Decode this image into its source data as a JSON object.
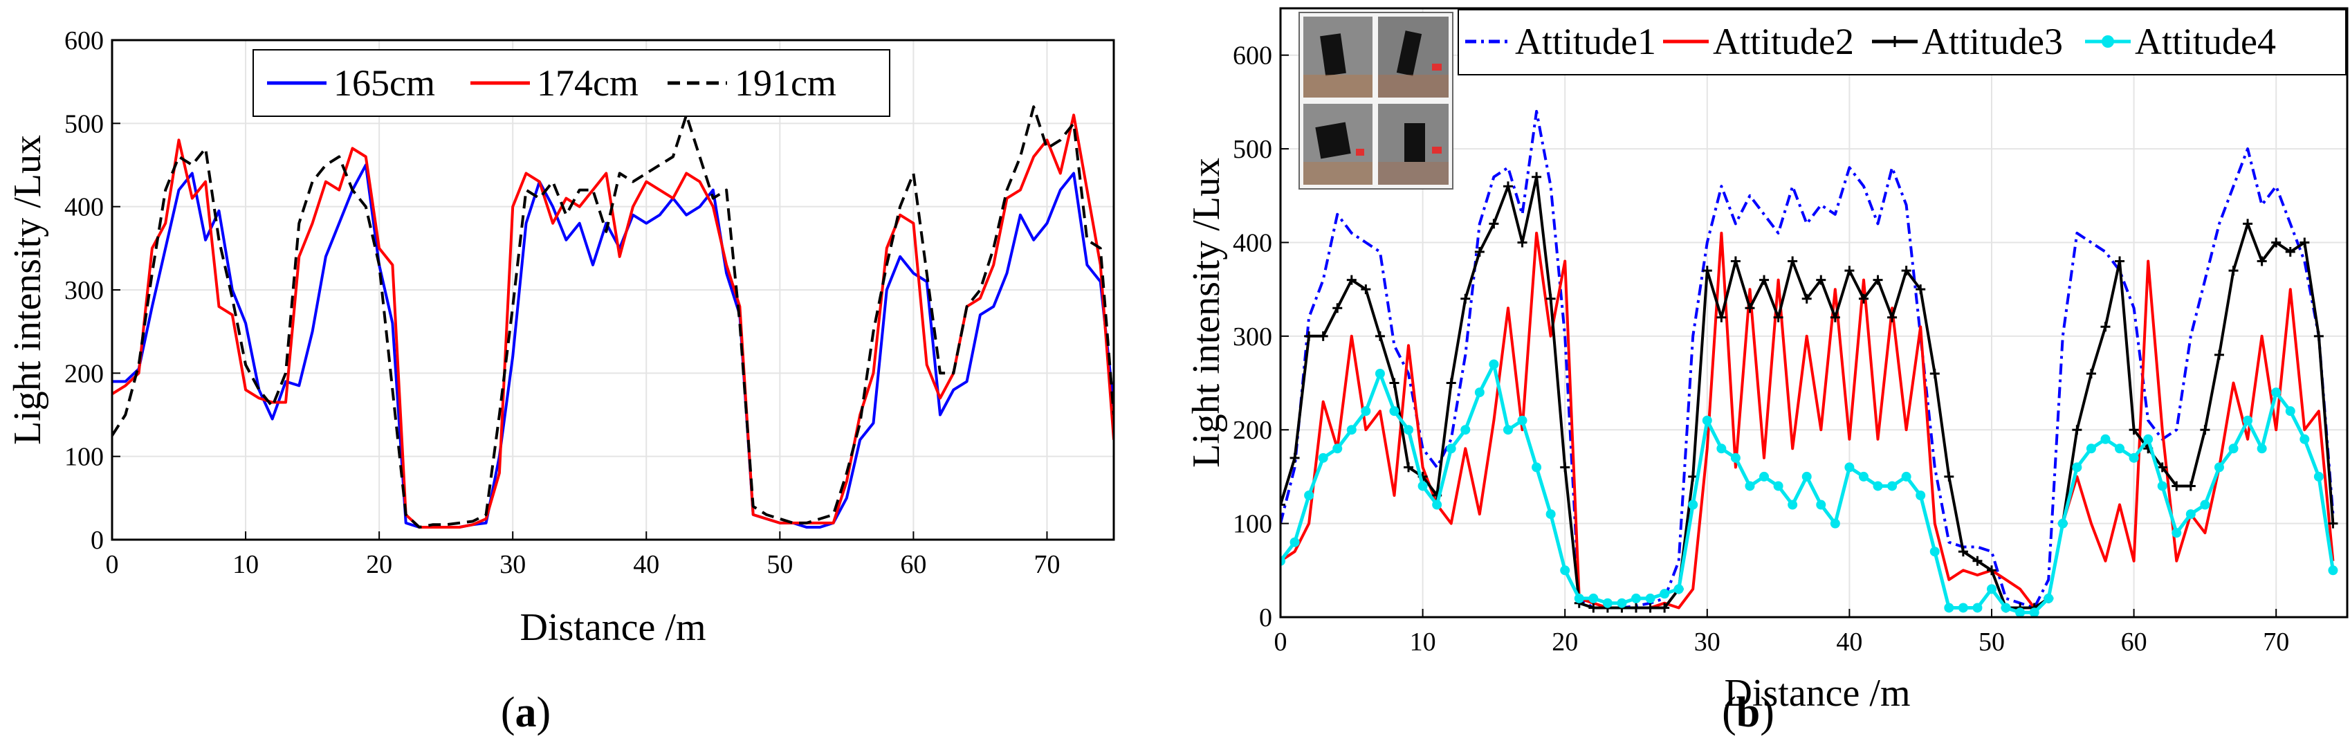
{
  "chart_data": [
    {
      "id": "a",
      "type": "line",
      "caption_letter": "a",
      "xlabel": "Distance /m",
      "ylabel": "Light intensity /Lux",
      "xlim": [
        0,
        75
      ],
      "ylim": [
        0,
        600
      ],
      "xticks": [
        0,
        10,
        20,
        30,
        40,
        50,
        60,
        70
      ],
      "yticks": [
        0,
        100,
        200,
        300,
        400,
        500,
        600
      ],
      "grid": true,
      "legend_position": "top-center",
      "series": [
        {
          "name": "165cm",
          "color": "#0000ff",
          "style": "solid",
          "x": [
            0,
            1,
            2,
            3,
            4,
            5,
            6,
            7,
            8,
            9,
            10,
            11,
            12,
            13,
            14,
            15,
            16,
            17,
            18,
            19,
            20,
            21,
            22,
            23,
            24,
            25,
            26,
            27,
            28,
            29,
            30,
            31,
            32,
            33,
            34,
            35,
            36,
            37,
            38,
            39,
            40,
            41,
            42,
            43,
            44,
            45,
            46,
            47,
            48,
            49,
            50,
            51,
            52,
            53,
            54,
            55,
            56,
            57,
            58,
            59,
            60,
            61,
            62,
            63,
            64,
            65,
            66,
            67,
            68,
            69,
            70,
            71,
            72,
            73,
            74,
            75
          ],
          "y": [
            190,
            190,
            205,
            280,
            350,
            420,
            440,
            360,
            395,
            300,
            260,
            180,
            145,
            190,
            185,
            250,
            340,
            380,
            420,
            450,
            330,
            260,
            20,
            15,
            15,
            15,
            15,
            18,
            20,
            100,
            220,
            380,
            430,
            400,
            360,
            380,
            330,
            380,
            350,
            390,
            380,
            390,
            410,
            390,
            400,
            420,
            320,
            270,
            30,
            25,
            20,
            20,
            15,
            15,
            20,
            50,
            120,
            140,
            300,
            340,
            320,
            310,
            150,
            180,
            190,
            270,
            280,
            320,
            390,
            360,
            380,
            420,
            440,
            330,
            310,
            160
          ]
        },
        {
          "name": "174cm",
          "color": "#ff0000",
          "style": "solid",
          "x": [
            0,
            1,
            2,
            3,
            4,
            5,
            6,
            7,
            8,
            9,
            10,
            11,
            12,
            13,
            14,
            15,
            16,
            17,
            18,
            19,
            20,
            21,
            22,
            23,
            24,
            25,
            26,
            27,
            28,
            29,
            30,
            31,
            32,
            33,
            34,
            35,
            36,
            37,
            38,
            39,
            40,
            41,
            42,
            43,
            44,
            45,
            46,
            47,
            48,
            49,
            50,
            51,
            52,
            53,
            54,
            55,
            56,
            57,
            58,
            59,
            60,
            61,
            62,
            63,
            64,
            65,
            66,
            67,
            68,
            69,
            70,
            71,
            72,
            73,
            74,
            75
          ],
          "y": [
            175,
            185,
            200,
            350,
            380,
            480,
            410,
            430,
            280,
            270,
            180,
            170,
            165,
            165,
            340,
            380,
            430,
            420,
            470,
            460,
            350,
            330,
            30,
            15,
            15,
            15,
            15,
            18,
            25,
            80,
            400,
            440,
            430,
            380,
            410,
            400,
            420,
            440,
            340,
            400,
            430,
            420,
            410,
            440,
            430,
            400,
            330,
            280,
            30,
            25,
            20,
            20,
            20,
            20,
            20,
            70,
            150,
            200,
            350,
            390,
            380,
            210,
            170,
            200,
            280,
            290,
            330,
            410,
            420,
            460,
            480,
            440,
            510,
            420,
            330,
            120
          ]
        },
        {
          "name": "191cm",
          "color": "#000000",
          "style": "dashed",
          "x": [
            0,
            1,
            2,
            3,
            4,
            5,
            6,
            7,
            8,
            9,
            10,
            11,
            12,
            13,
            14,
            15,
            16,
            17,
            18,
            19,
            20,
            21,
            22,
            23,
            24,
            25,
            26,
            27,
            28,
            29,
            30,
            31,
            32,
            33,
            34,
            35,
            36,
            37,
            38,
            39,
            40,
            41,
            42,
            43,
            44,
            45,
            46,
            47,
            48,
            49,
            50,
            51,
            52,
            53,
            54,
            55,
            56,
            57,
            58,
            59,
            60,
            61,
            62,
            63,
            64,
            65,
            66,
            67,
            68,
            69,
            70,
            71,
            72,
            73,
            74,
            75
          ],
          "y": [
            125,
            150,
            210,
            320,
            420,
            460,
            450,
            470,
            360,
            290,
            210,
            180,
            160,
            200,
            380,
            430,
            450,
            460,
            420,
            400,
            330,
            180,
            30,
            15,
            18,
            18,
            20,
            22,
            30,
            150,
            280,
            420,
            410,
            430,
            390,
            420,
            420,
            370,
            440,
            430,
            440,
            450,
            460,
            510,
            460,
            410,
            420,
            260,
            40,
            30,
            25,
            20,
            20,
            25,
            30,
            80,
            140,
            250,
            330,
            400,
            440,
            320,
            200,
            200,
            280,
            300,
            350,
            420,
            460,
            520,
            470,
            480,
            500,
            360,
            350,
            150
          ]
        }
      ]
    },
    {
      "id": "b",
      "type": "line",
      "caption_letter": "b",
      "xlabel": "Distance /m",
      "ylabel": "Light intensity /Lux",
      "xlim": [
        0,
        75
      ],
      "ylim": [
        0,
        650
      ],
      "xticks": [
        0,
        10,
        20,
        30,
        40,
        50,
        60,
        70
      ],
      "yticks": [
        0,
        100,
        200,
        300,
        400,
        500,
        600
      ],
      "grid": true,
      "legend_position": "top",
      "inset": "photo grid of four phone-holding attitudes (top-left)",
      "series": [
        {
          "name": "Attitude1",
          "color": "#0000ff",
          "style": "dashdot",
          "x": [
            0,
            1,
            2,
            3,
            4,
            5,
            6,
            7,
            8,
            9,
            10,
            11,
            12,
            13,
            14,
            15,
            16,
            17,
            18,
            19,
            20,
            21,
            22,
            23,
            24,
            25,
            26,
            27,
            28,
            29,
            30,
            31,
            32,
            33,
            34,
            35,
            36,
            37,
            38,
            39,
            40,
            41,
            42,
            43,
            44,
            45,
            46,
            47,
            48,
            49,
            50,
            51,
            52,
            53,
            54,
            55,
            56,
            57,
            58,
            59,
            60,
            61,
            62,
            63,
            64,
            65,
            66,
            67,
            68,
            69,
            70,
            71,
            72,
            73,
            74
          ],
          "y": [
            100,
            160,
            320,
            360,
            430,
            410,
            400,
            390,
            290,
            260,
            180,
            160,
            190,
            280,
            420,
            470,
            480,
            430,
            540,
            460,
            300,
            20,
            10,
            10,
            10,
            12,
            15,
            20,
            60,
            300,
            400,
            460,
            420,
            450,
            430,
            410,
            460,
            420,
            440,
            430,
            480,
            460,
            420,
            480,
            440,
            300,
            160,
            80,
            75,
            75,
            70,
            20,
            15,
            10,
            40,
            300,
            410,
            400,
            390,
            370,
            330,
            210,
            190,
            200,
            300,
            360,
            420,
            460,
            500,
            440,
            460,
            420,
            380,
            300,
            110
          ]
        },
        {
          "name": "Attitude2",
          "color": "#ff0000",
          "style": "solid",
          "x": [
            0,
            1,
            2,
            3,
            4,
            5,
            6,
            7,
            8,
            9,
            10,
            11,
            12,
            13,
            14,
            15,
            16,
            17,
            18,
            19,
            20,
            21,
            22,
            23,
            24,
            25,
            26,
            27,
            28,
            29,
            30,
            31,
            32,
            33,
            34,
            35,
            36,
            37,
            38,
            39,
            40,
            41,
            42,
            43,
            44,
            45,
            46,
            47,
            48,
            49,
            50,
            51,
            52,
            53,
            54,
            55,
            56,
            57,
            58,
            59,
            60,
            61,
            62,
            63,
            64,
            65,
            66,
            67,
            68,
            69,
            70,
            71,
            72,
            73,
            74
          ],
          "y": [
            60,
            70,
            100,
            230,
            180,
            300,
            200,
            220,
            130,
            290,
            160,
            120,
            100,
            180,
            110,
            210,
            330,
            200,
            410,
            300,
            380,
            20,
            15,
            10,
            10,
            10,
            10,
            15,
            10,
            30,
            180,
            410,
            160,
            350,
            170,
            360,
            180,
            300,
            200,
            350,
            190,
            360,
            190,
            330,
            200,
            310,
            100,
            40,
            50,
            45,
            50,
            40,
            30,
            10,
            20,
            100,
            150,
            100,
            60,
            120,
            60,
            380,
            200,
            60,
            110,
            90,
            160,
            250,
            190,
            300,
            200,
            350,
            200,
            220,
            60
          ]
        },
        {
          "name": "Attitude3",
          "color": "#000000",
          "style": "solid-plus",
          "x": [
            0,
            1,
            2,
            3,
            4,
            5,
            6,
            7,
            8,
            9,
            10,
            11,
            12,
            13,
            14,
            15,
            16,
            17,
            18,
            19,
            20,
            21,
            22,
            23,
            24,
            25,
            26,
            27,
            28,
            29,
            30,
            31,
            32,
            33,
            34,
            35,
            36,
            37,
            38,
            39,
            40,
            41,
            42,
            43,
            44,
            45,
            46,
            47,
            48,
            49,
            50,
            51,
            52,
            53,
            54,
            55,
            56,
            57,
            58,
            59,
            60,
            61,
            62,
            63,
            64,
            65,
            66,
            67,
            68,
            69,
            70,
            71,
            72,
            73,
            74
          ],
          "y": [
            120,
            170,
            300,
            300,
            330,
            360,
            350,
            300,
            250,
            160,
            150,
            130,
            250,
            340,
            390,
            420,
            460,
            400,
            470,
            340,
            160,
            15,
            10,
            10,
            10,
            10,
            10,
            10,
            30,
            150,
            370,
            320,
            380,
            330,
            360,
            320,
            380,
            340,
            360,
            320,
            370,
            340,
            360,
            320,
            370,
            350,
            260,
            150,
            70,
            60,
            50,
            10,
            10,
            10,
            20,
            100,
            200,
            260,
            310,
            380,
            200,
            180,
            160,
            140,
            140,
            200,
            280,
            370,
            420,
            380,
            400,
            390,
            400,
            300,
            100
          ]
        },
        {
          "name": "Attitude4",
          "color": "#00e5ee",
          "style": "solid-dot",
          "x": [
            0,
            1,
            2,
            3,
            4,
            5,
            6,
            7,
            8,
            9,
            10,
            11,
            12,
            13,
            14,
            15,
            16,
            17,
            18,
            19,
            20,
            21,
            22,
            23,
            24,
            25,
            26,
            27,
            28,
            29,
            30,
            31,
            32,
            33,
            34,
            35,
            36,
            37,
            38,
            39,
            40,
            41,
            42,
            43,
            44,
            45,
            46,
            47,
            48,
            49,
            50,
            51,
            52,
            53,
            54,
            55,
            56,
            57,
            58,
            59,
            60,
            61,
            62,
            63,
            64,
            65,
            66,
            67,
            68,
            69,
            70,
            71,
            72,
            73,
            74
          ],
          "y": [
            60,
            80,
            130,
            170,
            180,
            200,
            220,
            260,
            220,
            200,
            140,
            120,
            180,
            200,
            240,
            270,
            200,
            210,
            160,
            110,
            50,
            20,
            20,
            15,
            15,
            20,
            20,
            25,
            30,
            120,
            210,
            180,
            170,
            140,
            150,
            140,
            120,
            150,
            120,
            100,
            160,
            150,
            140,
            140,
            150,
            130,
            70,
            10,
            10,
            10,
            30,
            10,
            5,
            5,
            20,
            100,
            160,
            180,
            190,
            180,
            170,
            190,
            140,
            90,
            110,
            120,
            160,
            180,
            210,
            180,
            240,
            220,
            190,
            150,
            50
          ]
        }
      ]
    }
  ]
}
